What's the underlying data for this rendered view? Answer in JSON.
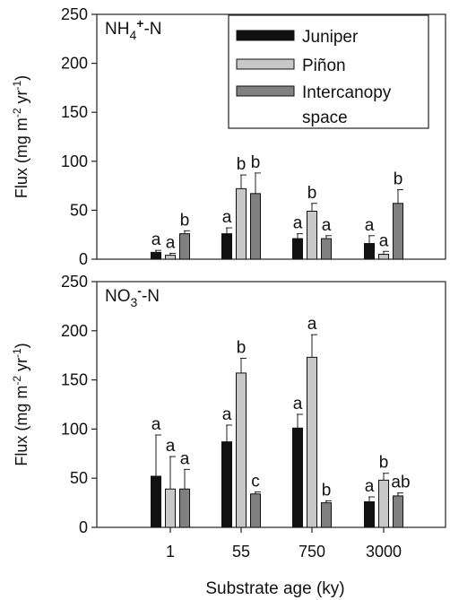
{
  "chart_data": {
    "type": "bar",
    "categories": [
      "1",
      "55",
      "750",
      "3000"
    ],
    "xlabel": "Substrate age (ky)",
    "legend": {
      "placement": "top-right",
      "entries": [
        {
          "name": "Juniper",
          "lines": [
            "Juniper"
          ],
          "color": "#111111"
        },
        {
          "name": "Piñon",
          "lines": [
            "Piñon"
          ],
          "color": "#c8c8c8"
        },
        {
          "name": "Intercanopy space",
          "lines": [
            "Intercanopy",
            "space"
          ],
          "color": "#808080"
        }
      ]
    },
    "panels": [
      {
        "label": {
          "main": "NH",
          "sub": "4",
          "sup": "+",
          "tail": "-N"
        },
        "ylabel": {
          "pre": "Flux (mg m",
          "sup1": "-2",
          "mid": " yr",
          "sup2": "-1",
          "post": ")"
        },
        "ylim": [
          0,
          250
        ],
        "yticks": [
          "0",
          "50",
          "100",
          "150",
          "200",
          "250"
        ],
        "show_legend": true,
        "series": [
          {
            "name": "Juniper",
            "values": [
              7,
              26,
              21,
              16
            ],
            "errors": [
              2,
              6,
              5,
              8
            ],
            "letters": [
              "a",
              "a",
              "a",
              "a"
            ]
          },
          {
            "name": "Piñon",
            "values": [
              4,
              72,
              49,
              5
            ],
            "errors": [
              2,
              14,
              8,
              3
            ],
            "letters": [
              "a",
              "b",
              "b",
              "a"
            ]
          },
          {
            "name": "Intercanopy space",
            "values": [
              26,
              67,
              21,
              57
            ],
            "errors": [
              3,
              21,
              3,
              14
            ],
            "letters": [
              "b",
              "b",
              "a",
              "b"
            ]
          }
        ]
      },
      {
        "label": {
          "main": "NO",
          "sub": "3",
          "sup": "-",
          "tail": "-N"
        },
        "ylabel": {
          "pre": "Flux (mg m",
          "sup1": "-2",
          "mid": " yr",
          "sup2": "-1",
          "post": ")"
        },
        "ylim": [
          0,
          250
        ],
        "yticks": [
          "0",
          "50",
          "100",
          "150",
          "200",
          "250"
        ],
        "show_legend": false,
        "series": [
          {
            "name": "Juniper",
            "values": [
              52,
              87,
              101,
              26
            ],
            "errors": [
              42,
              17,
              14,
              5
            ],
            "letters": [
              "a",
              "a",
              "a",
              "a"
            ]
          },
          {
            "name": "Piñon",
            "values": [
              39,
              157,
              173,
              48
            ],
            "errors": [
              33,
              15,
              23,
              7
            ],
            "letters": [
              "a",
              "b",
              "a",
              "b"
            ]
          },
          {
            "name": "Intercanopy space",
            "values": [
              39,
              34,
              25,
              32
            ],
            "errors": [
              20,
              2,
              2,
              3
            ],
            "letters": [
              "a",
              "c",
              "b",
              "ab"
            ]
          }
        ]
      }
    ]
  }
}
